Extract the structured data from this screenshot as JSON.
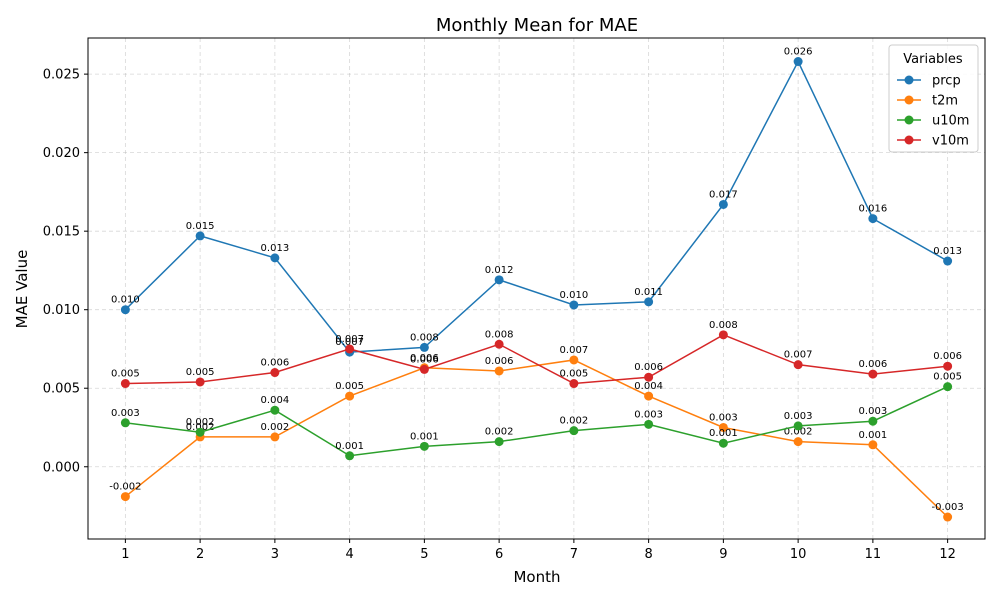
{
  "chart_data": {
    "type": "line",
    "title": "Monthly Mean for MAE",
    "xlabel": "Month",
    "ylabel": "MAE Value",
    "x": [
      1,
      2,
      3,
      4,
      5,
      6,
      7,
      8,
      9,
      10,
      11,
      12
    ],
    "x_ticks": [
      "1",
      "2",
      "3",
      "4",
      "5",
      "6",
      "7",
      "8",
      "9",
      "10",
      "11",
      "12"
    ],
    "xlim": [
      0.5,
      12.5
    ],
    "ylim": [
      -0.0046,
      0.0273
    ],
    "y_ticks": [
      "0.000",
      "0.005",
      "0.010",
      "0.015",
      "0.020",
      "0.025"
    ],
    "y_tick_values": [
      0,
      0.005,
      0.01,
      0.015,
      0.02,
      0.025
    ],
    "grid": true,
    "legend": {
      "title": "Variables",
      "placement": "top-right"
    },
    "series": [
      {
        "name": "prcp",
        "color": "#1f77b4",
        "values": [
          0.01,
          0.0147,
          0.0133,
          0.0073,
          0.0076,
          0.0119,
          0.0103,
          0.0105,
          0.0167,
          0.0258,
          0.0158,
          0.0131
        ],
        "labels": [
          "0.010",
          "0.015",
          "0.013",
          "0.007",
          "0.008",
          "0.012",
          "0.010",
          "0.011",
          "0.017",
          "0.026",
          "0.016",
          "0.013"
        ]
      },
      {
        "name": "t2m",
        "color": "#ff7f0e",
        "values": [
          -0.0019,
          0.0019,
          0.0019,
          0.0045,
          0.0063,
          0.0061,
          0.0068,
          0.0045,
          0.0025,
          0.0016,
          0.0014,
          -0.0032
        ],
        "labels": [
          "-0.002",
          "0.002",
          "0.002",
          "0.005",
          "0.006",
          "0.006",
          "0.007",
          "0.004",
          "0.003",
          "0.002",
          "0.001",
          "-0.003"
        ]
      },
      {
        "name": "u10m",
        "color": "#2ca02c",
        "values": [
          0.0028,
          0.0022,
          0.0036,
          0.0007,
          0.0013,
          0.0016,
          0.0023,
          0.0027,
          0.0015,
          0.0026,
          0.0029,
          0.0051
        ],
        "labels": [
          "0.003",
          "0.002",
          "0.004",
          "0.001",
          "0.001",
          "0.002",
          "0.002",
          "0.003",
          "0.001",
          "0.003",
          "0.003",
          "0.005"
        ]
      },
      {
        "name": "v10m",
        "color": "#d62728",
        "values": [
          0.0053,
          0.0054,
          0.006,
          0.0075,
          0.0062,
          0.0078,
          0.0053,
          0.0057,
          0.0084,
          0.0065,
          0.0059,
          0.0064
        ],
        "labels": [
          "0.005",
          "0.005",
          "0.006",
          "0.007",
          "0.006",
          "0.008",
          "0.005",
          "0.006",
          "0.008",
          "0.007",
          "0.006",
          "0.006"
        ]
      }
    ]
  }
}
